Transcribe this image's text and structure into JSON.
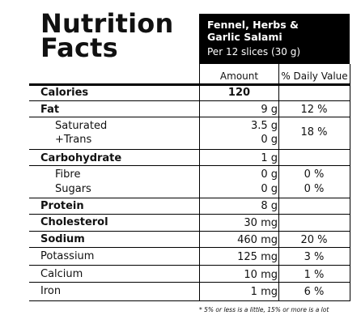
{
  "title": "Nutrition\nFacts",
  "product": {
    "name": "Fennel, Herbs &\nGarlic Salami",
    "serving": "Per 12 slices (30 g)"
  },
  "columns": {
    "amount": "Amount",
    "dv": "% Daily Value"
  },
  "calories": {
    "label": "Calories",
    "amount": "120"
  },
  "fat": {
    "label": "Fat",
    "amount": "9 g",
    "dv": "12 %"
  },
  "saturated": {
    "label": "Saturated",
    "amount": "3.5 g"
  },
  "trans": {
    "label": "+Trans",
    "amount": "0 g"
  },
  "satTransDv": "18 %",
  "carbohydrate": {
    "label": "Carbohydrate",
    "amount": "1 g"
  },
  "fibre": {
    "label": "Fibre",
    "amount": "0 g",
    "dv": "0 %"
  },
  "sugars": {
    "label": "Sugars",
    "amount": "0 g",
    "dv": "0 %"
  },
  "protein": {
    "label": "Protein",
    "amount": "8 g"
  },
  "cholesterol": {
    "label": "Cholesterol",
    "amount": "30 mg"
  },
  "sodium": {
    "label": "Sodium",
    "amount": "460 mg",
    "dv": "20 %"
  },
  "potassium": {
    "label": "Potassium",
    "amount": "125 mg",
    "dv": "3 %"
  },
  "calcium": {
    "label": "Calcium",
    "amount": "10 mg",
    "dv": "1 %"
  },
  "iron": {
    "label": "Iron",
    "amount": "1 mg",
    "dv": "6 %"
  },
  "footnote": "* 5% or less is a little, 15% or more is a lot"
}
